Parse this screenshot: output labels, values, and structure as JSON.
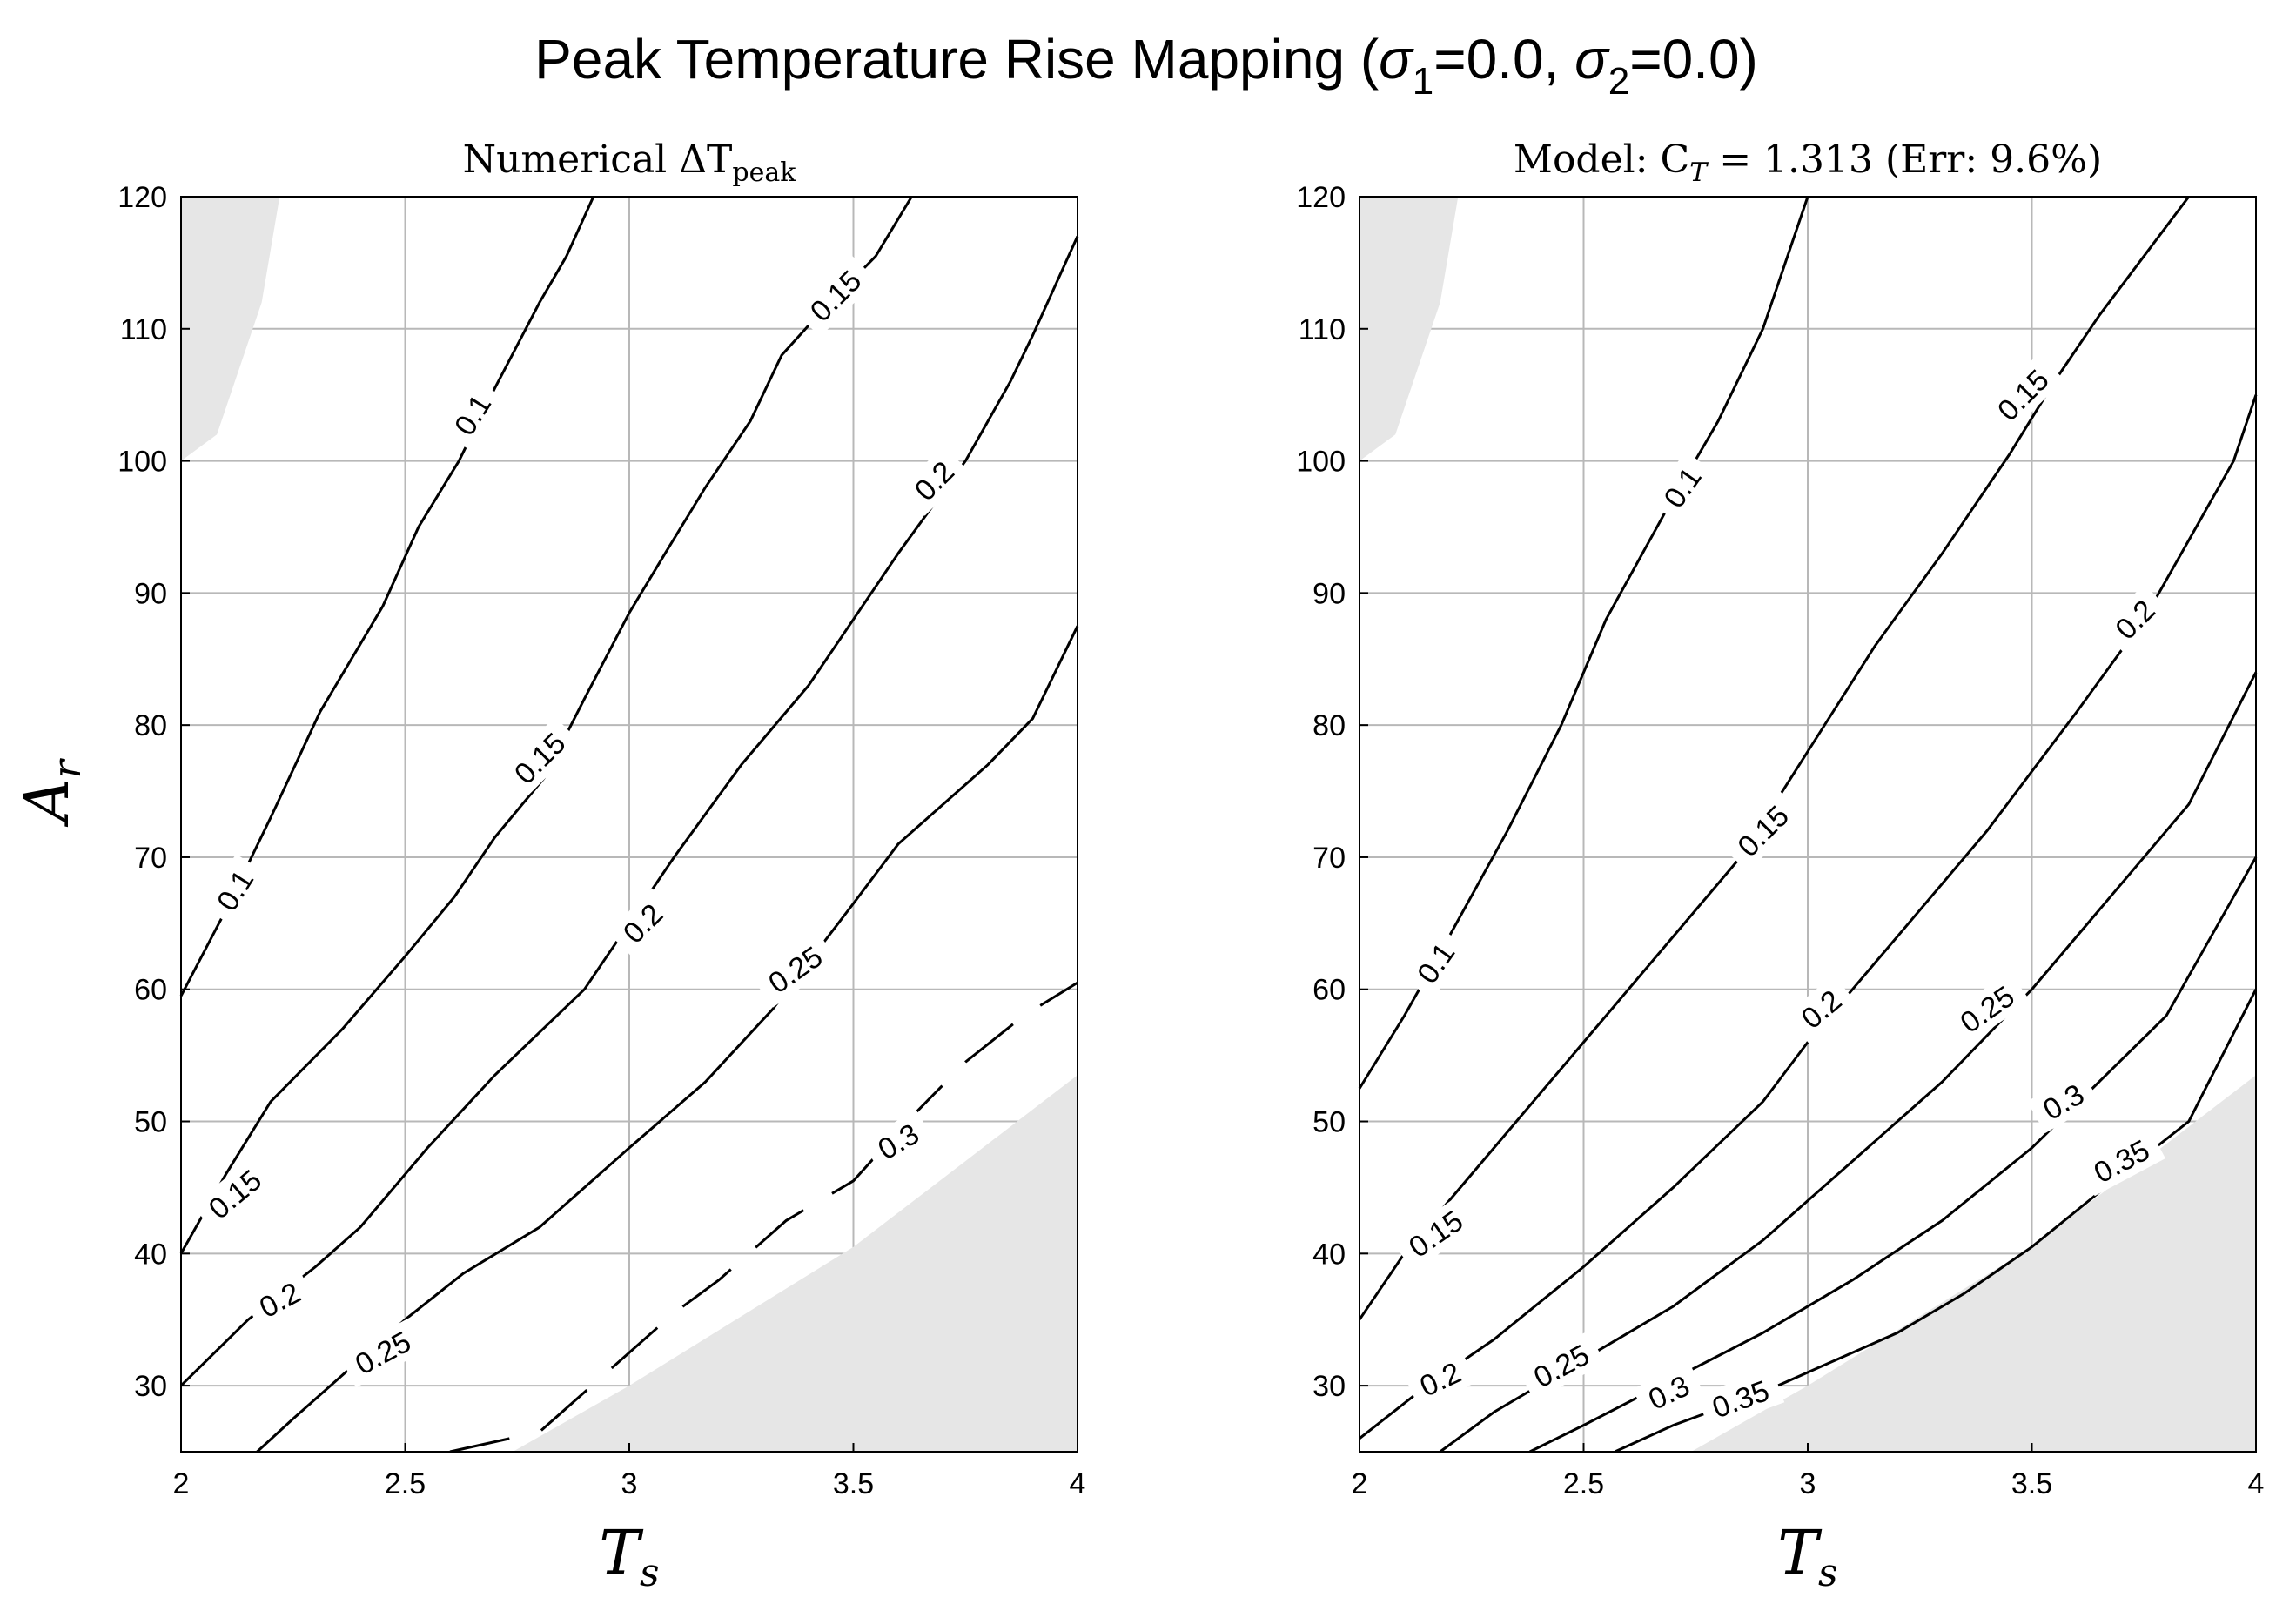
{
  "figure": {
    "title_prefix": "Peak Temperature Rise Mapping (",
    "sigma_symbol": "σ",
    "sigma1_sub": "1",
    "sigma1_val": "=0.0, ",
    "sigma2_sub": "2",
    "sigma2_val": "=0.0)"
  },
  "chart_data": [
    {
      "type": "contour",
      "title_main": "Numerical ΔT",
      "title_sub": "peak",
      "xlabel": "T",
      "xlabel_sub": "s",
      "ylabel": "A",
      "ylabel_sub": "r",
      "xlim": [
        2,
        4
      ],
      "ylim": [
        25,
        120
      ],
      "xticks": [
        2,
        2.5,
        3,
        3.5,
        4
      ],
      "xtick_labels": [
        "2",
        "2.5",
        "3",
        "3.5",
        "4"
      ],
      "yticks": [
        30,
        40,
        50,
        60,
        70,
        80,
        90,
        100,
        110,
        120
      ],
      "ytick_labels": [
        "30",
        "40",
        "50",
        "60",
        "70",
        "80",
        "90",
        "100",
        "110",
        "120"
      ],
      "grid": true,
      "masked_color": "#e6e6e6",
      "masked_regions": [
        {
          "name": "upper-left",
          "points": [
            [
              2,
              120
            ],
            [
              2.22,
              120
            ],
            [
              2.18,
              112
            ],
            [
              2.12,
              106
            ],
            [
              2.08,
              102
            ],
            [
              2,
              100
            ]
          ]
        },
        {
          "name": "lower-right",
          "points": [
            [
              2.74,
              25
            ],
            [
              3.0,
              30
            ],
            [
              3.5,
              40.5
            ],
            [
              3.75,
              47
            ],
            [
              4,
              53.5
            ],
            [
              4,
              25
            ]
          ]
        }
      ],
      "contours": [
        {
          "level": 0.1,
          "points": [
            [
              2,
              59.5
            ],
            [
              2.1,
              66
            ],
            [
              2.2,
              73
            ],
            [
              2.31,
              81
            ],
            [
              2.45,
              89
            ],
            [
              2.53,
              95
            ],
            [
              2.62,
              100
            ],
            [
              2.7,
              105.5
            ],
            [
              2.8,
              112
            ],
            [
              2.86,
              115.5
            ],
            [
              2.92,
              120
            ]
          ],
          "labels": [
            {
              "text": "0.1",
              "at": [
                2.12,
                67.5
              ],
              "angle": -58
            },
            {
              "text": "0.1",
              "at": [
                2.65,
                103.5
              ],
              "angle": -58
            }
          ]
        },
        {
          "level": 0.15,
          "points": [
            [
              2,
              40
            ],
            [
              2.1,
              46
            ],
            [
              2.2,
              51.5
            ],
            [
              2.36,
              57
            ],
            [
              2.5,
              62.5
            ],
            [
              2.61,
              67
            ],
            [
              2.7,
              71.5
            ],
            [
              2.81,
              76
            ],
            [
              2.9,
              82
            ],
            [
              3.0,
              88.5
            ],
            [
              3.08,
              93
            ],
            [
              3.17,
              98
            ],
            [
              3.27,
              103
            ],
            [
              3.34,
              108
            ],
            [
              3.42,
              111
            ],
            [
              3.55,
              115.5
            ],
            [
              3.63,
              120
            ]
          ],
          "labels": [
            {
              "text": "0.15",
              "at": [
                2.12,
                44.5
              ],
              "angle": -40
            },
            {
              "text": "0.15",
              "at": [
                2.8,
                77.5
              ],
              "angle": -45
            },
            {
              "text": "0.15",
              "at": [
                3.46,
                112.5
              ],
              "angle": -45
            }
          ]
        },
        {
          "level": 0.2,
          "points": [
            [
              2,
              30
            ],
            [
              2.15,
              35
            ],
            [
              2.3,
              39
            ],
            [
              2.4,
              42
            ],
            [
              2.55,
              48
            ],
            [
              2.7,
              53.5
            ],
            [
              2.9,
              60
            ],
            [
              3.0,
              65
            ],
            [
              3.1,
              70
            ],
            [
              3.25,
              77
            ],
            [
              3.4,
              83
            ],
            [
              3.5,
              88
            ],
            [
              3.6,
              93
            ],
            [
              3.75,
              100
            ],
            [
              3.85,
              106
            ],
            [
              3.9,
              109.5
            ],
            [
              4.0,
              117
            ]
          ],
          "labels": [
            {
              "text": "0.2",
              "at": [
                2.22,
                36.5
              ],
              "angle": -28
            },
            {
              "text": "0.2",
              "at": [
                3.03,
                65
              ],
              "angle": -45
            },
            {
              "text": "0.2",
              "at": [
                3.68,
                98.5
              ],
              "angle": -45
            }
          ]
        },
        {
          "level": 0.25,
          "points": [
            [
              2.17,
              25
            ],
            [
              2.25,
              27.5
            ],
            [
              2.5,
              35
            ],
            [
              2.63,
              38.5
            ],
            [
              2.8,
              42
            ],
            [
              3.0,
              48
            ],
            [
              3.17,
              53
            ],
            [
              3.32,
              58.5
            ],
            [
              3.5,
              66.5
            ],
            [
              3.6,
              71
            ],
            [
              3.8,
              77
            ],
            [
              3.9,
              80.5
            ],
            [
              4.0,
              87.5
            ]
          ],
          "labels": [
            {
              "text": "0.25",
              "at": [
                2.45,
                32.5
              ],
              "angle": -28
            },
            {
              "text": "0.25",
              "at": [
                3.37,
                61.5
              ],
              "angle": -35
            }
          ]
        },
        {
          "level": 0.3,
          "dashed": true,
          "points": [
            [
              2.6,
              25
            ],
            [
              2.8,
              26.5
            ],
            [
              3.1,
              35.5
            ],
            [
              3.2,
              38
            ],
            [
              3.35,
              42.5
            ],
            [
              3.5,
              45.5
            ],
            [
              3.62,
              50
            ],
            [
              3.75,
              54.5
            ],
            [
              3.88,
              58
            ],
            [
              4.0,
              60.5
            ]
          ],
          "labels": [
            {
              "text": "0.3",
              "at": [
                3.6,
                48.5
              ],
              "angle": -30
            }
          ]
        }
      ]
    },
    {
      "type": "contour",
      "title": "Model: C",
      "title_sub": "T",
      "title_rest": " = 1.313 (Err: 9.6%)",
      "xlabel": "T",
      "xlabel_sub": "s",
      "xlim": [
        2,
        4
      ],
      "ylim": [
        25,
        120
      ],
      "xticks": [
        2,
        2.5,
        3,
        3.5,
        4
      ],
      "xtick_labels": [
        "2",
        "2.5",
        "3",
        "3.5",
        "4"
      ],
      "yticks": [
        30,
        40,
        50,
        60,
        70,
        80,
        90,
        100,
        110,
        120
      ],
      "ytick_labels": [
        "30",
        "40",
        "50",
        "60",
        "70",
        "80",
        "90",
        "100",
        "110",
        "120"
      ],
      "grid": true,
      "masked_color": "#e6e6e6",
      "masked_regions": [
        {
          "name": "upper-left",
          "points": [
            [
              2,
              120
            ],
            [
              2.22,
              120
            ],
            [
              2.18,
              112
            ],
            [
              2.12,
              106
            ],
            [
              2.08,
              102
            ],
            [
              2,
              100
            ]
          ]
        },
        {
          "name": "lower-right",
          "points": [
            [
              2.74,
              25
            ],
            [
              3.0,
              30
            ],
            [
              3.5,
              40.5
            ],
            [
              3.75,
              47
            ],
            [
              4,
              53.5
            ],
            [
              4,
              25
            ]
          ]
        }
      ],
      "contours": [
        {
          "level": 0.1,
          "points": [
            [
              2,
              52.5
            ],
            [
              2.1,
              58
            ],
            [
              2.2,
              64
            ],
            [
              2.33,
              72
            ],
            [
              2.45,
              80
            ],
            [
              2.55,
              88
            ],
            [
              2.68,
              96
            ],
            [
              2.8,
              103
            ],
            [
              2.9,
              110
            ],
            [
              3.0,
              120
            ]
          ],
          "labels": [
            {
              "text": "0.1",
              "at": [
                2.17,
                62
              ],
              "angle": -55
            },
            {
              "text": "0.1",
              "at": [
                2.72,
                98
              ],
              "angle": -55
            }
          ]
        },
        {
          "level": 0.15,
          "points": [
            [
              2,
              35
            ],
            [
              2.1,
              40
            ],
            [
              2.2,
              44
            ],
            [
              2.35,
              50
            ],
            [
              2.5,
              56
            ],
            [
              2.7,
              64
            ],
            [
              2.85,
              70
            ],
            [
              3.0,
              78
            ],
            [
              3.15,
              86
            ],
            [
              3.3,
              93
            ],
            [
              3.45,
              100.5
            ],
            [
              3.55,
              106
            ],
            [
              3.65,
              111
            ],
            [
              3.75,
              115.5
            ],
            [
              3.85,
              120
            ]
          ],
          "labels": [
            {
              "text": "0.15",
              "at": [
                2.17,
                41.5
              ],
              "angle": -35
            },
            {
              "text": "0.15",
              "at": [
                2.9,
                72
              ],
              "angle": -45
            },
            {
              "text": "0.15",
              "at": [
                3.48,
                105
              ],
              "angle": -45
            }
          ]
        },
        {
          "level": 0.2,
          "points": [
            [
              2,
              26
            ],
            [
              2.15,
              30
            ],
            [
              2.3,
              33.5
            ],
            [
              2.5,
              39
            ],
            [
              2.7,
              45
            ],
            [
              2.9,
              51.5
            ],
            [
              3.0,
              56
            ],
            [
              3.1,
              60
            ],
            [
              3.25,
              66
            ],
            [
              3.4,
              72
            ],
            [
              3.6,
              81
            ],
            [
              3.75,
              88
            ],
            [
              3.85,
              94
            ],
            [
              3.95,
              100
            ],
            [
              4.0,
              105
            ]
          ],
          "labels": [
            {
              "text": "0.2",
              "at": [
                2.18,
                30.5
              ],
              "angle": -25
            },
            {
              "text": "0.2",
              "at": [
                3.03,
                58.5
              ],
              "angle": -40
            },
            {
              "text": "0.2",
              "at": [
                3.73,
                88
              ],
              "angle": -45
            }
          ]
        },
        {
          "level": 0.25,
          "points": [
            [
              2.18,
              25
            ],
            [
              2.3,
              28
            ],
            [
              2.5,
              32
            ],
            [
              2.7,
              36
            ],
            [
              2.9,
              41
            ],
            [
              3.1,
              47
            ],
            [
              3.3,
              53
            ],
            [
              3.5,
              60
            ],
            [
              3.6,
              64
            ],
            [
              3.7,
              68
            ],
            [
              3.85,
              74
            ],
            [
              4.0,
              84
            ]
          ],
          "labels": [
            {
              "text": "0.25",
              "at": [
                2.45,
                31.5
              ],
              "angle": -28
            },
            {
              "text": "0.25",
              "at": [
                3.4,
                58.5
              ],
              "angle": -35
            }
          ]
        },
        {
          "level": 0.3,
          "points": [
            [
              2.38,
              25
            ],
            [
              2.5,
              27
            ],
            [
              2.7,
              30.5
            ],
            [
              2.9,
              34
            ],
            [
              3.1,
              38
            ],
            [
              3.3,
              42.5
            ],
            [
              3.5,
              48
            ],
            [
              3.65,
              53
            ],
            [
              3.8,
              58
            ],
            [
              4.0,
              70
            ]
          ],
          "labels": [
            {
              "text": "0.3",
              "at": [
                2.69,
                29.5
              ],
              "angle": -25
            },
            {
              "text": "0.3",
              "at": [
                3.57,
                51.5
              ],
              "angle": -30
            }
          ]
        },
        {
          "level": 0.35,
          "points": [
            [
              2.57,
              25
            ],
            [
              2.7,
              27
            ],
            [
              2.9,
              29.5
            ],
            [
              3.0,
              31
            ],
            [
              3.2,
              34
            ],
            [
              3.35,
              37
            ],
            [
              3.5,
              40.5
            ],
            [
              3.7,
              46
            ],
            [
              3.85,
              50
            ],
            [
              4.0,
              60
            ]
          ],
          "labels": [
            {
              "text": "0.35",
              "at": [
                2.85,
                29
              ],
              "angle": -20
            },
            {
              "text": "0.35",
              "at": [
                3.7,
                47
              ],
              "angle": -28
            }
          ]
        }
      ]
    }
  ]
}
